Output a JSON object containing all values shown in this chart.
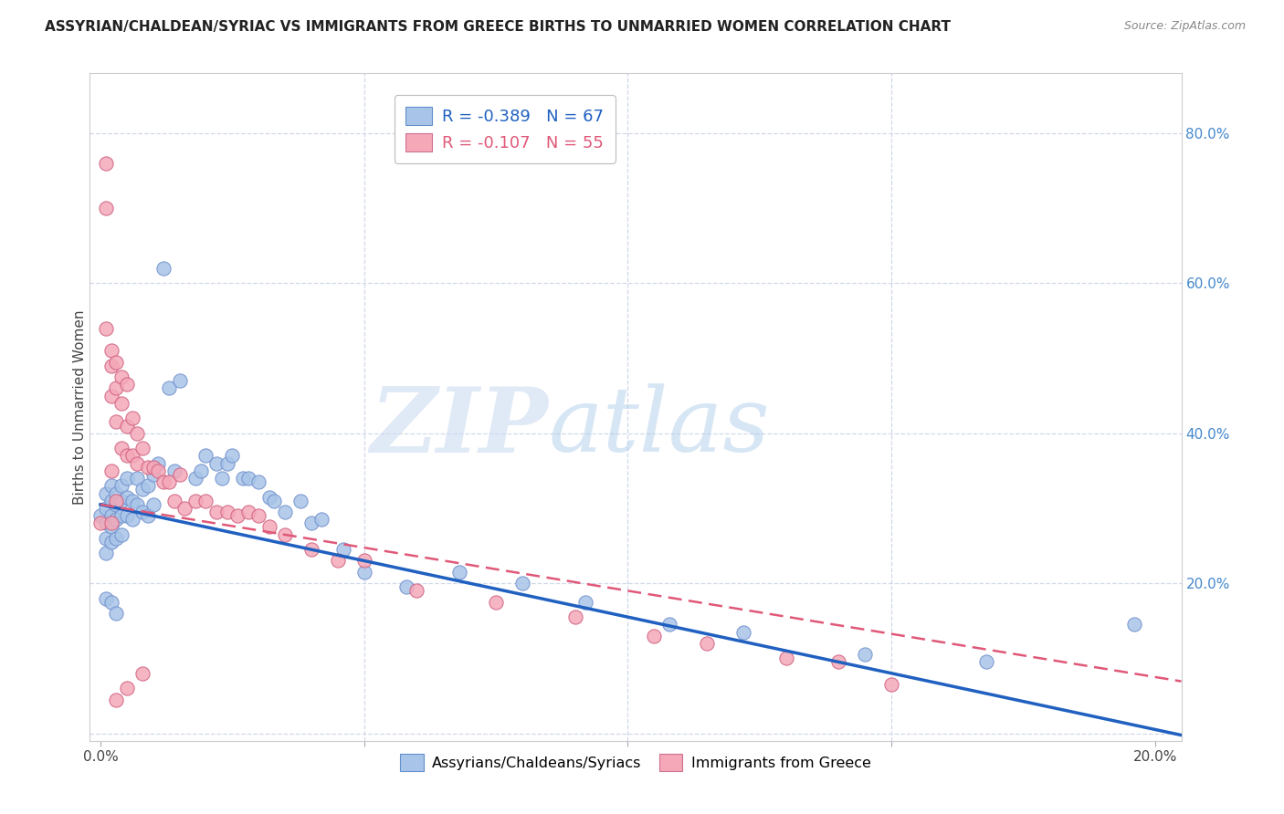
{
  "title": "ASSYRIAN/CHALDEAN/SYRIAC VS IMMIGRANTS FROM GREECE BIRTHS TO UNMARRIED WOMEN CORRELATION CHART",
  "source": "Source: ZipAtlas.com",
  "ylabel": "Births to Unmarried Women",
  "series1_label": "Assyrians/Chaldeans/Syriacs",
  "series2_label": "Immigrants from Greece",
  "series1_R": "-0.389",
  "series1_N": "67",
  "series2_R": "-0.107",
  "series2_N": "55",
  "series1_color": "#a8c4e8",
  "series2_color": "#f4a8b8",
  "trendline1_color": "#2060c0",
  "trendline2_color": "#e05878",
  "right_axis_color": "#4488cc",
  "watermark_zip": "ZIP",
  "watermark_atlas": "atlas",
  "series1_x": [
    0.0,
    0.001,
    0.001,
    0.001,
    0.001,
    0.001,
    0.001,
    0.002,
    0.002,
    0.002,
    0.002,
    0.002,
    0.002,
    0.003,
    0.003,
    0.003,
    0.003,
    0.003,
    0.004,
    0.004,
    0.004,
    0.004,
    0.005,
    0.005,
    0.005,
    0.006,
    0.006,
    0.007,
    0.007,
    0.008,
    0.008,
    0.009,
    0.009,
    0.01,
    0.01,
    0.011,
    0.012,
    0.013,
    0.014,
    0.015,
    0.018,
    0.019,
    0.02,
    0.022,
    0.023,
    0.024,
    0.025,
    0.027,
    0.028,
    0.03,
    0.032,
    0.033,
    0.035,
    0.038,
    0.04,
    0.042,
    0.046,
    0.05,
    0.058,
    0.068,
    0.08,
    0.092,
    0.108,
    0.122,
    0.145,
    0.168,
    0.196
  ],
  "series1_y": [
    0.29,
    0.32,
    0.3,
    0.28,
    0.26,
    0.24,
    0.18,
    0.33,
    0.31,
    0.29,
    0.275,
    0.255,
    0.175,
    0.32,
    0.305,
    0.285,
    0.26,
    0.16,
    0.33,
    0.31,
    0.29,
    0.265,
    0.34,
    0.315,
    0.29,
    0.31,
    0.285,
    0.34,
    0.305,
    0.325,
    0.295,
    0.33,
    0.29,
    0.345,
    0.305,
    0.36,
    0.62,
    0.46,
    0.35,
    0.47,
    0.34,
    0.35,
    0.37,
    0.36,
    0.34,
    0.36,
    0.37,
    0.34,
    0.34,
    0.335,
    0.315,
    0.31,
    0.295,
    0.31,
    0.28,
    0.285,
    0.245,
    0.215,
    0.195,
    0.215,
    0.2,
    0.175,
    0.145,
    0.135,
    0.105,
    0.095,
    0.145
  ],
  "series2_x": [
    0.0,
    0.001,
    0.001,
    0.001,
    0.002,
    0.002,
    0.002,
    0.002,
    0.002,
    0.003,
    0.003,
    0.003,
    0.003,
    0.004,
    0.004,
    0.004,
    0.005,
    0.005,
    0.005,
    0.006,
    0.006,
    0.007,
    0.007,
    0.008,
    0.009,
    0.01,
    0.011,
    0.012,
    0.013,
    0.014,
    0.015,
    0.016,
    0.018,
    0.02,
    0.022,
    0.024,
    0.026,
    0.028,
    0.03,
    0.032,
    0.035,
    0.04,
    0.045,
    0.05,
    0.06,
    0.075,
    0.09,
    0.105,
    0.115,
    0.13,
    0.14,
    0.15,
    0.003,
    0.005,
    0.008
  ],
  "series2_y": [
    0.28,
    0.76,
    0.7,
    0.54,
    0.51,
    0.49,
    0.45,
    0.35,
    0.28,
    0.495,
    0.46,
    0.415,
    0.31,
    0.475,
    0.44,
    0.38,
    0.465,
    0.41,
    0.37,
    0.42,
    0.37,
    0.4,
    0.36,
    0.38,
    0.355,
    0.355,
    0.35,
    0.335,
    0.335,
    0.31,
    0.345,
    0.3,
    0.31,
    0.31,
    0.295,
    0.295,
    0.29,
    0.295,
    0.29,
    0.275,
    0.265,
    0.245,
    0.23,
    0.23,
    0.19,
    0.175,
    0.155,
    0.13,
    0.12,
    0.1,
    0.095,
    0.065,
    0.045,
    0.06,
    0.08
  ],
  "xlim": [
    0.0,
    0.205
  ],
  "ylim": [
    0.0,
    0.88
  ],
  "xticks": [
    0.0,
    0.05,
    0.1,
    0.15,
    0.2
  ],
  "xticklabels": [
    "0.0%",
    "",
    "",
    "",
    "20.0%"
  ],
  "yticks_right": [
    0.0,
    0.2,
    0.4,
    0.6,
    0.8
  ],
  "ytick_labels_right": [
    "",
    "20.0%",
    "40.0%",
    "60.0%",
    "80.0%"
  ],
  "grid_color": "#d0d8e8",
  "spine_color": "#cccccc",
  "title_color": "#222222",
  "source_color": "#888888",
  "ylabel_color": "#444444"
}
